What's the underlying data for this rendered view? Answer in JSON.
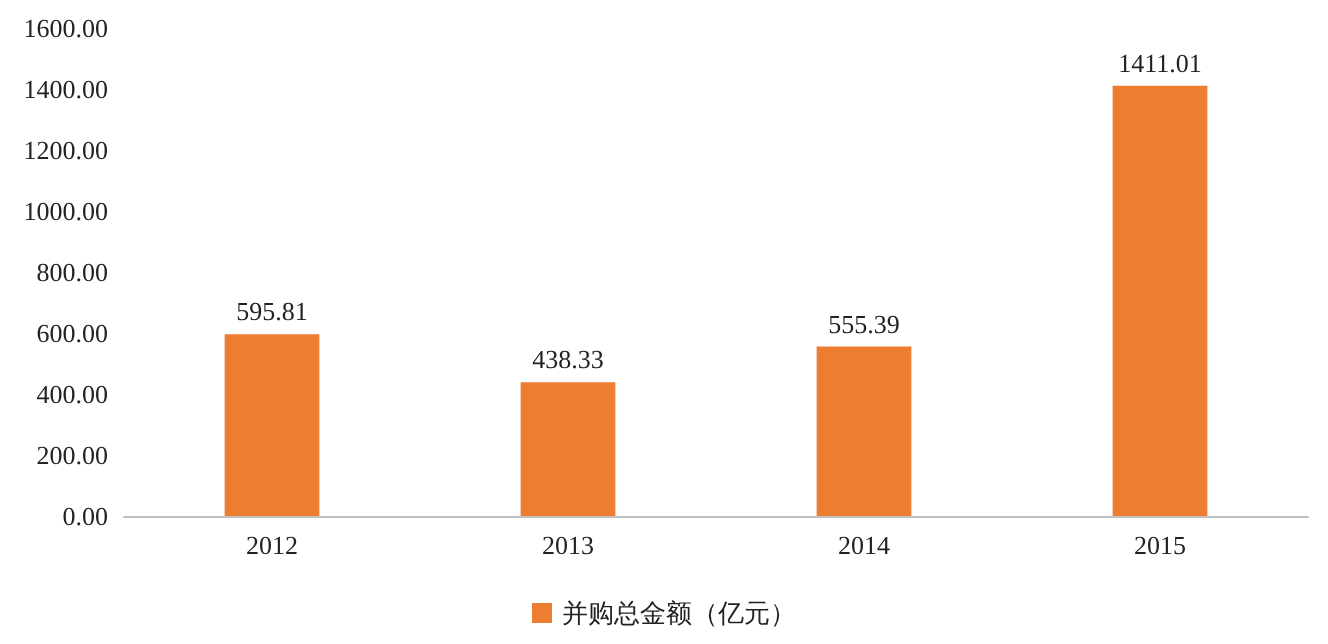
{
  "chart_data": {
    "type": "bar",
    "categories": [
      "2012",
      "2013",
      "2014",
      "2015"
    ],
    "series": [
      {
        "name": "并购总金额（亿元）",
        "color": "#ed7d31",
        "values": [
          595.81,
          438.33,
          555.39,
          1411.01
        ]
      }
    ],
    "ylim": [
      0,
      1600
    ],
    "yticks": [
      {
        "value": 0,
        "label": "0.00"
      },
      {
        "value": 200,
        "label": "200.00"
      },
      {
        "value": 400,
        "label": "400.00"
      },
      {
        "value": 600,
        "label": "600.00"
      },
      {
        "value": 800,
        "label": "800.00"
      },
      {
        "value": 1000,
        "label": "1000.00"
      },
      {
        "value": 1200,
        "label": "1200.00"
      },
      {
        "value": 1400,
        "label": "1400.00"
      },
      {
        "value": 1600,
        "label": "1600.00"
      }
    ],
    "data_labels": true,
    "legend": "bottom",
    "grid": false
  }
}
